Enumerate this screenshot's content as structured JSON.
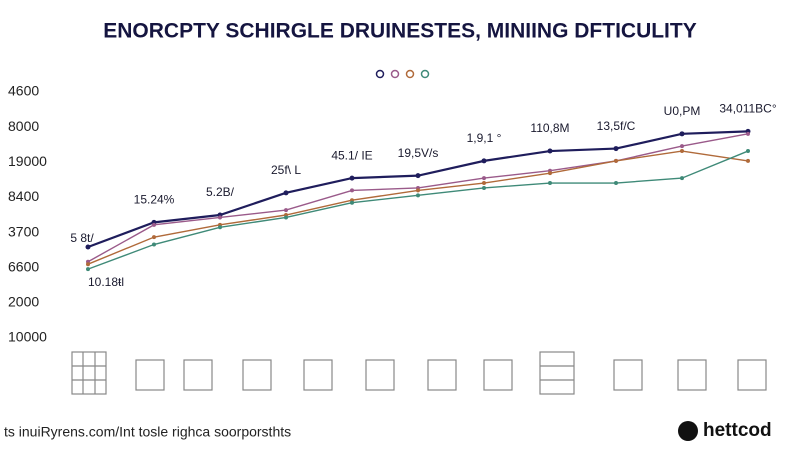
{
  "chart_data": {
    "type": "line",
    "title": "ENORCPTY SCHIRGLE DRUINESTES, MINIING DFTICULITY",
    "y_labels": [
      "4600",
      "8000",
      "19000",
      "8400",
      "3700",
      "6600",
      "2000",
      "10000"
    ],
    "ylim": [
      0,
      100
    ],
    "x": [
      0,
      1,
      2,
      3,
      4,
      5,
      6,
      7,
      8,
      9,
      10
    ],
    "xlim": [
      0,
      10
    ],
    "series": [
      {
        "color": "#1f1d5c",
        "values": [
          37,
          47,
          50,
          59,
          65,
          66,
          72,
          76,
          77,
          83,
          84
        ]
      },
      {
        "color": "#9a5a8a",
        "values": [
          31,
          46,
          49,
          52,
          60,
          61,
          65,
          68,
          72,
          78,
          83
        ]
      },
      {
        "color": "#b06a3a",
        "values": [
          30,
          41,
          46,
          50,
          56,
          60,
          63,
          67,
          72,
          76,
          72
        ]
      },
      {
        "color": "#3f8a78",
        "values": [
          28,
          38,
          45,
          49,
          55,
          58,
          61,
          63,
          63,
          65,
          76
        ]
      }
    ],
    "annotations": [
      "5 8t/",
      "15.24%",
      "5.2B/",
      "25f\\ L",
      "45.1/ IE",
      "19,5V/s",
      "1,9,1 °",
      "110,8M",
      "13,5f/C",
      "U0,PM",
      "34,011BC°",
      "10.18ŧl"
    ],
    "footer": "ts inuiRyrens.com/Int tosle righca soorporsthts",
    "logo": "hettcod"
  }
}
